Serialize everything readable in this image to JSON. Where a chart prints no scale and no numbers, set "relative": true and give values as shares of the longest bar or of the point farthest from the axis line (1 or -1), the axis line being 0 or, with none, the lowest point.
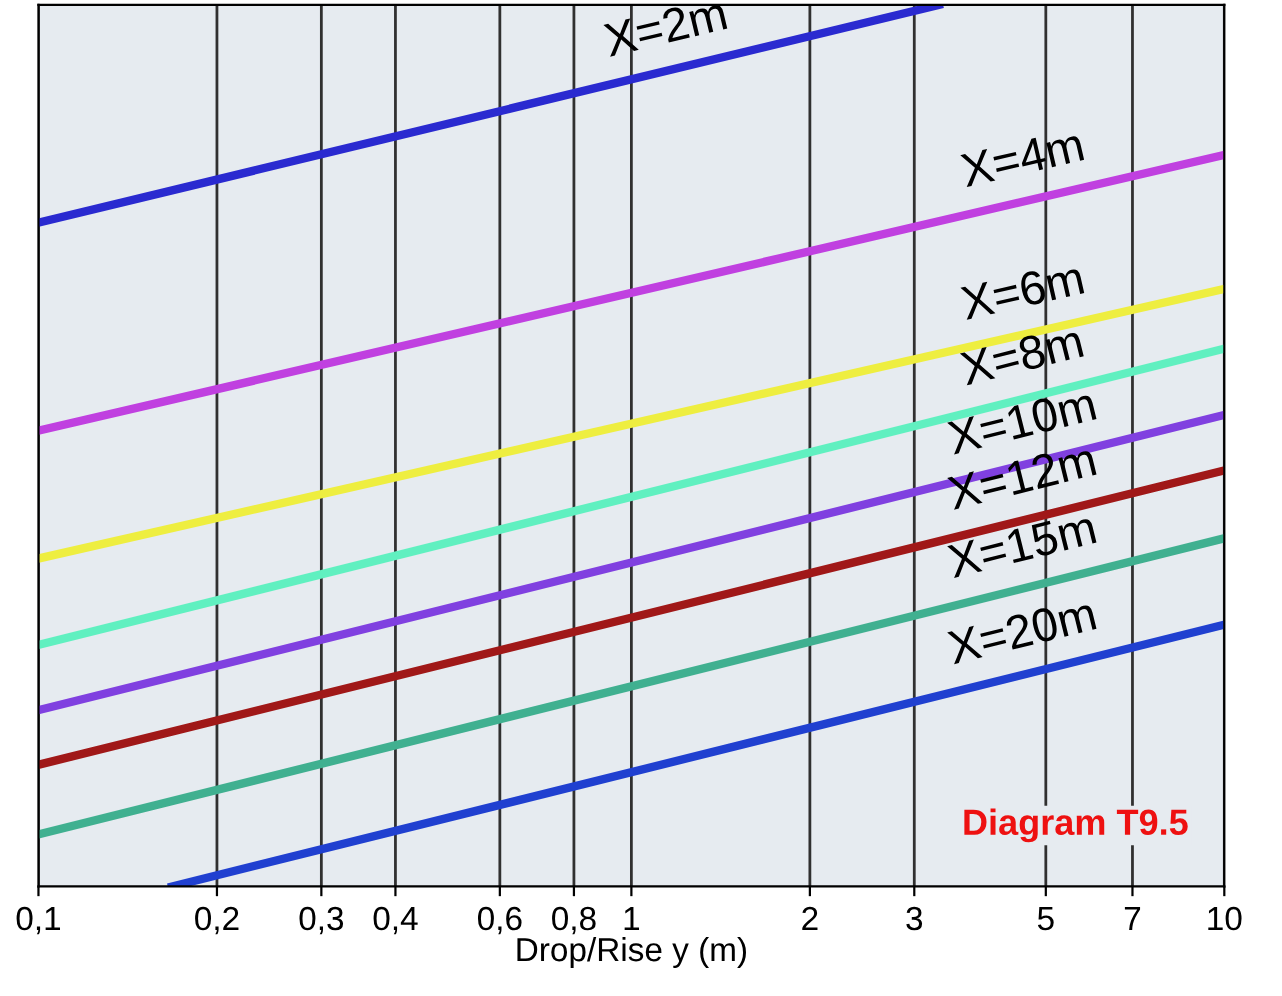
{
  "chart_data": {
    "type": "line",
    "relative": true,
    "xlabel": "Drop/Rise y (m)",
    "log": "x",
    "xlim": [
      0.1,
      10
    ],
    "xticks": [
      {
        "value": 0.1,
        "label": "0,1"
      },
      {
        "value": 0.2,
        "label": "0,2"
      },
      {
        "value": 0.3,
        "label": "0,3"
      },
      {
        "value": 0.4,
        "label": "0,4"
      },
      {
        "value": 0.6,
        "label": "0,6"
      },
      {
        "value": 0.8,
        "label": "0,8"
      },
      1,
      2,
      3,
      5,
      7,
      10
    ],
    "grid": "x",
    "tick_labels": "x",
    "marker": "none",
    "line_style": "solid",
    "annotations": [
      "Diagram T9.5"
    ],
    "series": [
      {
        "name": "X=2m",
        "color": "#2a2ad0",
        "x": [
          0.1,
          3.3
        ],
        "values": [
          0.753,
          1.0
        ]
      },
      {
        "name": "X=4m",
        "color": "#c040e0",
        "x": [
          0.1,
          10
        ],
        "values": [
          0.517,
          0.83
        ]
      },
      {
        "name": "X=6m",
        "color": "#eeee40",
        "x": [
          0.1,
          10
        ],
        "values": [
          0.372,
          0.678
        ]
      },
      {
        "name": "X=8m",
        "color": "#60f0c0",
        "x": [
          0.1,
          10
        ],
        "values": [
          0.274,
          0.61
        ]
      },
      {
        "name": "X=10m",
        "color": "#8040e0",
        "x": [
          0.1,
          10
        ],
        "values": [
          0.2,
          0.535
        ]
      },
      {
        "name": "X=12m",
        "color": "#a01818",
        "x": [
          0.1,
          10
        ],
        "values": [
          0.138,
          0.472
        ]
      },
      {
        "name": "X=15m",
        "color": "#40b090",
        "x": [
          0.1,
          10
        ],
        "values": [
          0.059,
          0.395
        ]
      },
      {
        "name": "X=20m",
        "color": "#2040d0",
        "x": [
          0.168,
          10
        ],
        "values": [
          0.0,
          0.297
        ]
      }
    ]
  }
}
